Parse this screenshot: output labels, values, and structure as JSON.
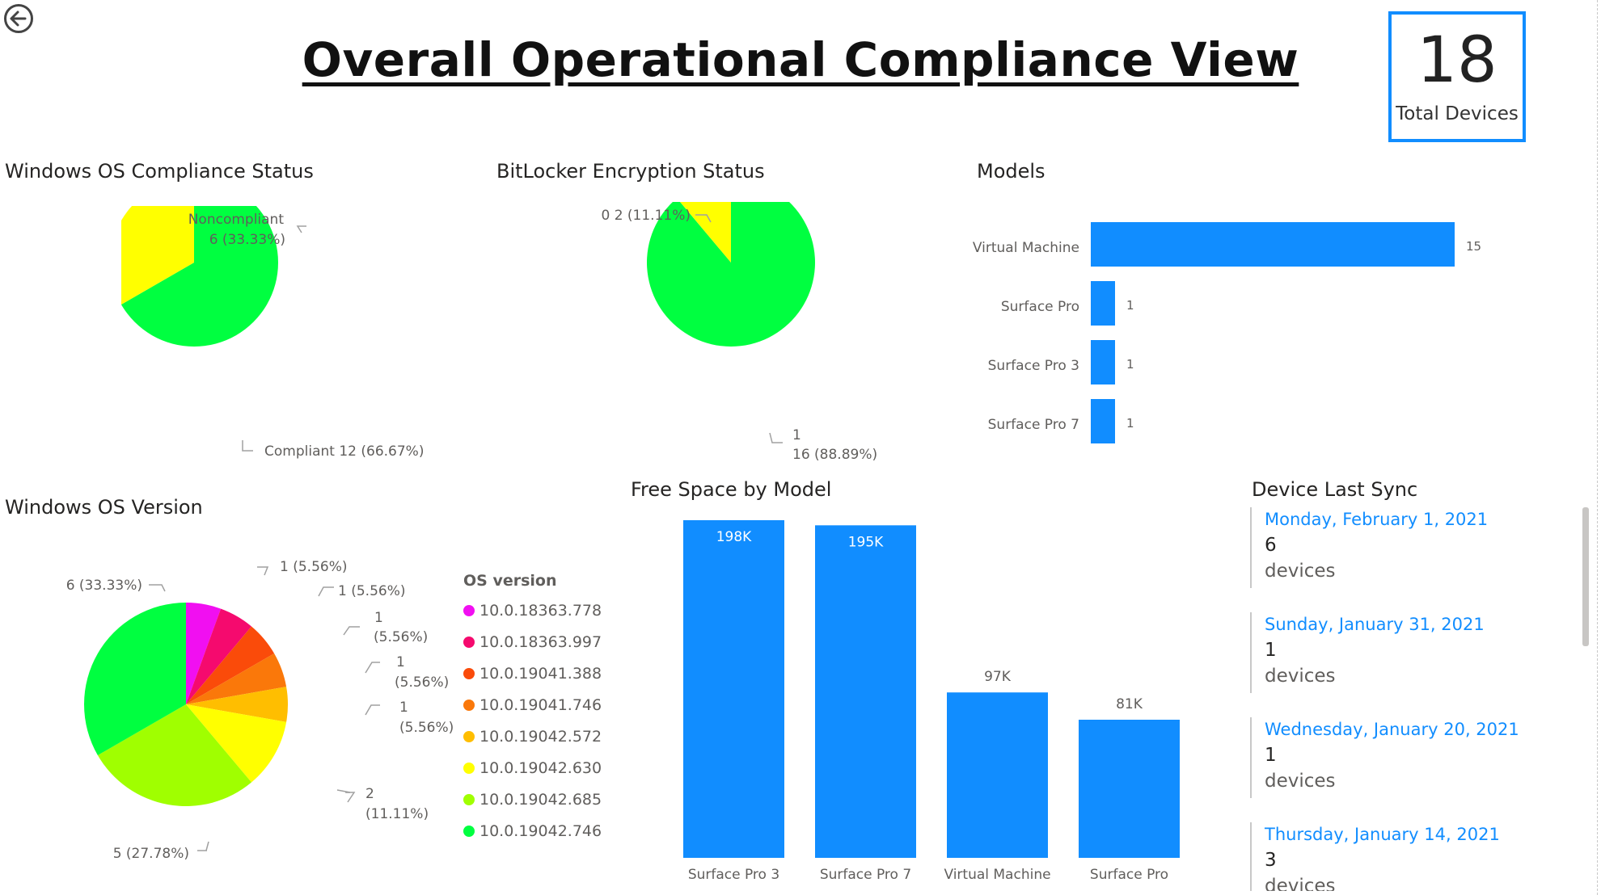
{
  "page": {
    "title": "Overall Operational Compliance View"
  },
  "back_icon": "back-arrow-icon",
  "total_card": {
    "value": "18",
    "label": "Total Devices",
    "border_color": "#118DFF"
  },
  "visuals": {
    "os_compliance": {
      "title": "Windows OS Compliance Status"
    },
    "bitlocker": {
      "title": "BitLocker Encryption Status"
    },
    "models": {
      "title": "Models"
    },
    "os_version": {
      "title": "Windows OS Version",
      "legend_title": "OS version"
    },
    "free_space": {
      "title": "Free Space by Model"
    },
    "last_sync": {
      "title": "Device Last Sync"
    }
  },
  "chart_data": [
    {
      "type": "pie",
      "title": "Windows OS Compliance Status",
      "slices": [
        {
          "label": "Compliant",
          "value": 12,
          "display": "Compliant 12 (66.67%)",
          "color": "#00FF40"
        },
        {
          "label": "Noncompliant",
          "value": 6,
          "display_line1": "Noncompliant",
          "display_line2": "6 (33.33%)",
          "color": "#FFFF00"
        }
      ]
    },
    {
      "type": "pie",
      "title": "BitLocker Encryption Status",
      "slices": [
        {
          "label": "1",
          "value": 16,
          "display_line1": "1",
          "display_line2": "16 (88.89%)",
          "color": "#00FF40"
        },
        {
          "label": "0",
          "value": 2,
          "display": "0 2 (11.11%)",
          "color": "#FFFF00"
        }
      ]
    },
    {
      "type": "bar",
      "orientation": "horizontal",
      "title": "Models",
      "categories": [
        "Virtual Machine",
        "Surface Pro",
        "Surface Pro 3",
        "Surface Pro 7"
      ],
      "values": [
        15,
        1,
        1,
        1
      ],
      "color": "#118DFF"
    },
    {
      "type": "pie",
      "title": "Windows OS Version",
      "legend_title": "OS version",
      "slices": [
        {
          "label": "10.0.18363.778",
          "value": 1,
          "display": "1 (5.56%)",
          "color": "#F10FF1"
        },
        {
          "label": "10.0.18363.997",
          "value": 1,
          "display": "1 (5.56%)",
          "color": "#F50A6E"
        },
        {
          "label": "10.0.19041.388",
          "value": 1,
          "display_line1": "1",
          "display_line2": "(5.56%)",
          "color": "#FA4B0A"
        },
        {
          "label": "10.0.19041.746",
          "value": 1,
          "display_line1": "1",
          "display_line2": "(5.56%)",
          "color": "#FA780A"
        },
        {
          "label": "10.0.19042.572",
          "value": 1,
          "display_line1": "1",
          "display_line2": "(5.56%)",
          "color": "#FFBE00"
        },
        {
          "label": "10.0.19042.630",
          "value": 2,
          "display_line1": "2",
          "display_line2": "(11.11%)",
          "color": "#FFFF00"
        },
        {
          "label": "10.0.19042.685",
          "value": 5,
          "display": "5 (27.78%)",
          "color": "#A0FF00"
        },
        {
          "label": "10.0.19042.746",
          "value": 6,
          "display": "6 (33.33%)",
          "color": "#00FF40"
        }
      ]
    },
    {
      "type": "bar",
      "orientation": "vertical",
      "title": "Free Space by Model",
      "categories": [
        "Surface Pro 3",
        "Surface Pro 7",
        "Virtual Machine",
        "Surface Pro"
      ],
      "values": [
        198,
        195,
        97,
        81
      ],
      "value_labels": [
        "198K",
        "195K",
        "97K",
        "81K"
      ],
      "unit": "K",
      "color": "#118DFF"
    }
  ],
  "last_sync": [
    {
      "date": "Monday, February 1, 2021",
      "count": "6",
      "unit": "devices"
    },
    {
      "date": "Sunday, January 31, 2021",
      "count": "1",
      "unit": "devices"
    },
    {
      "date": "Wednesday, January 20, 2021",
      "count": "1",
      "unit": "devices"
    },
    {
      "date": "Thursday, January 14, 2021",
      "count": "3",
      "unit": "devices"
    }
  ]
}
